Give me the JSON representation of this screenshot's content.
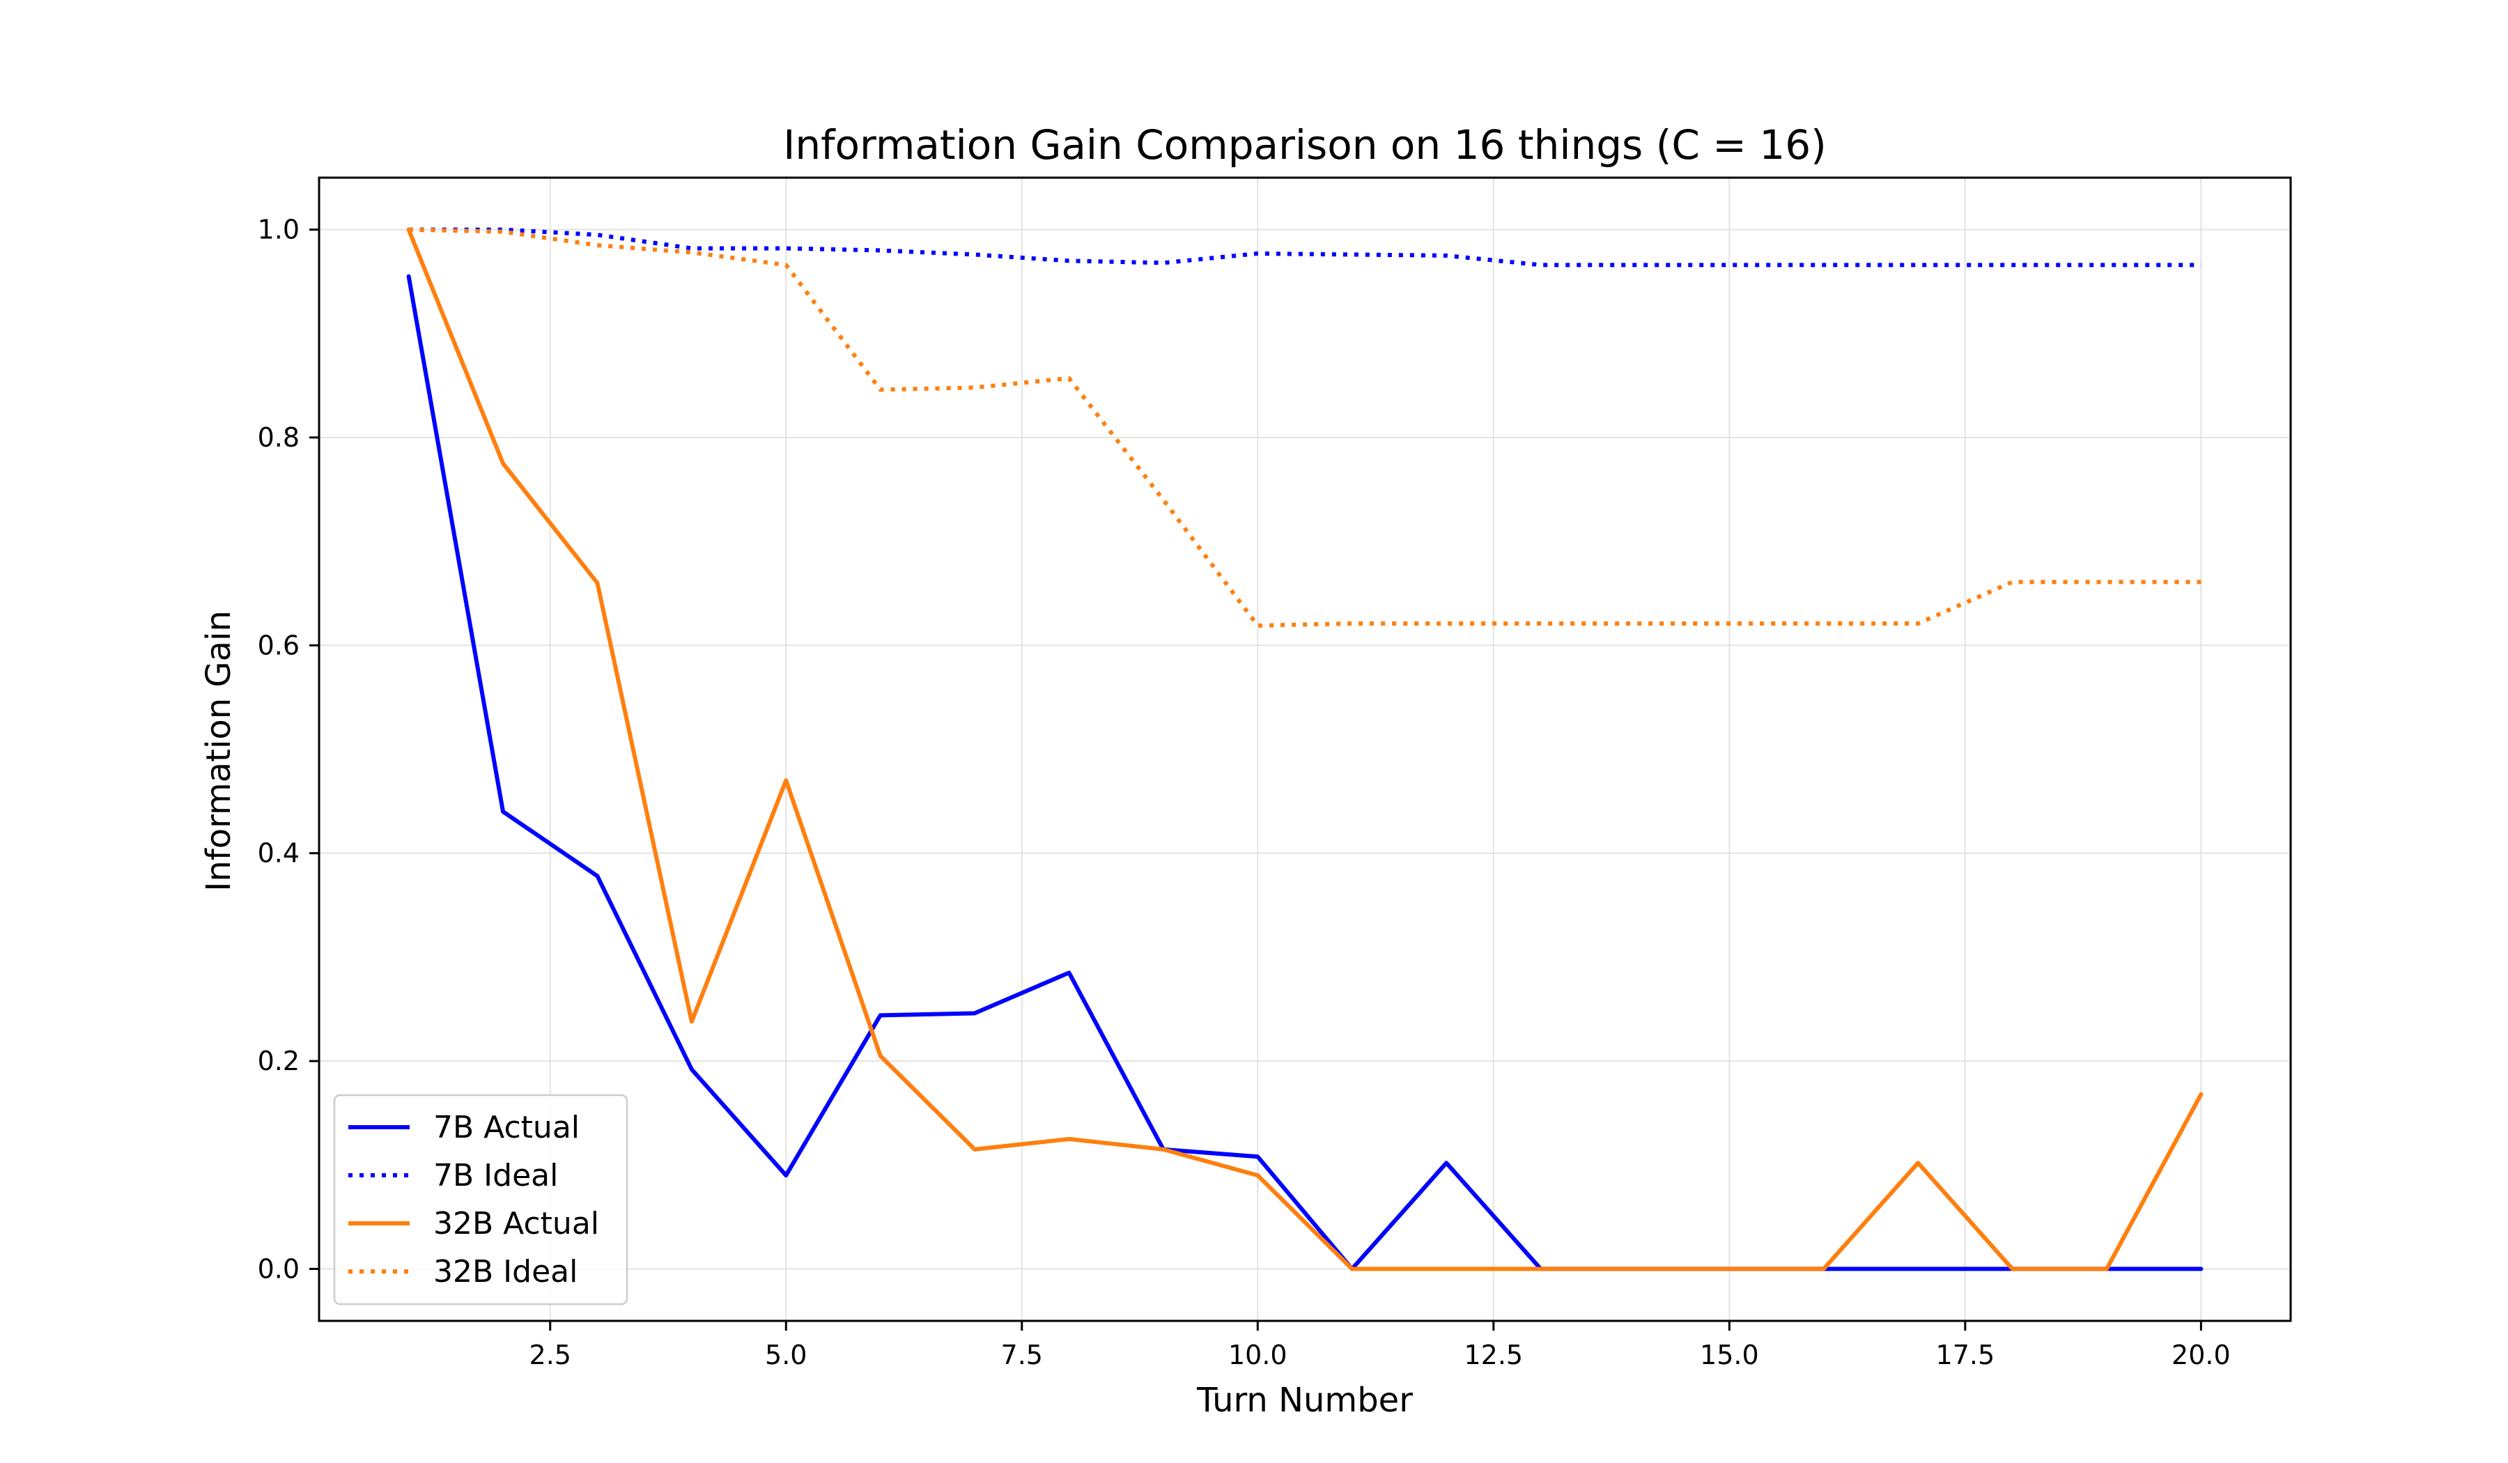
{
  "chart_data": {
    "type": "line",
    "title": "Information Gain Comparison on 16 things (C = 16)",
    "xlabel": "Turn Number",
    "ylabel": "Information Gain",
    "xlim": [
      0.05,
      20.95
    ],
    "ylim": [
      -0.05,
      1.05
    ],
    "xticks": [
      "2.5",
      "5.0",
      "7.5",
      "10.0",
      "12.5",
      "15.0",
      "17.5",
      "20.0"
    ],
    "xtick_values": [
      2.5,
      5.0,
      7.5,
      10.0,
      12.5,
      15.0,
      17.5,
      20.0
    ],
    "yticks": [
      "0.0",
      "0.2",
      "0.4",
      "0.6",
      "0.8",
      "1.0"
    ],
    "ytick_values": [
      0.0,
      0.2,
      0.4,
      0.6,
      0.8,
      1.0
    ],
    "grid": true,
    "legend_position": "lower-left",
    "x": [
      1,
      2,
      3,
      4,
      5,
      6,
      7,
      8,
      9,
      10,
      11,
      12,
      13,
      14,
      15,
      16,
      17,
      18,
      19,
      20
    ],
    "series": [
      {
        "name": "7B Actual",
        "color": "#0000ff",
        "style": "solid",
        "values": [
          0.955,
          0.44,
          0.378,
          0.192,
          0.09,
          0.244,
          0.246,
          0.285,
          0.115,
          0.108,
          0.0,
          0.102,
          0.0,
          0.0,
          0.0,
          0.0,
          0.0,
          0.0,
          0.0,
          0.0
        ]
      },
      {
        "name": "7B Ideal",
        "color": "#0000ff",
        "style": "dotted",
        "values": [
          1.0,
          1.0,
          0.995,
          0.982,
          0.982,
          0.98,
          0.976,
          0.97,
          0.968,
          0.977,
          0.976,
          0.975,
          0.966,
          0.966,
          0.966,
          0.966,
          0.966,
          0.966,
          0.966,
          0.966
        ]
      },
      {
        "name": "32B Actual",
        "color": "#ff7f0e",
        "style": "solid",
        "values": [
          1.0,
          0.775,
          0.66,
          0.238,
          0.47,
          0.205,
          0.115,
          0.125,
          0.115,
          0.09,
          0.0,
          0.0,
          0.0,
          0.0,
          0.0,
          0.0,
          0.102,
          0.0,
          0.0,
          0.168
        ]
      },
      {
        "name": "32B Ideal",
        "color": "#ff7f0e",
        "style": "dotted",
        "values": [
          1.0,
          0.998,
          0.985,
          0.978,
          0.966,
          0.846,
          0.848,
          0.857,
          0.74,
          0.619,
          0.621,
          0.621,
          0.621,
          0.621,
          0.621,
          0.621,
          0.621,
          0.661,
          0.661,
          0.661
        ]
      }
    ]
  }
}
